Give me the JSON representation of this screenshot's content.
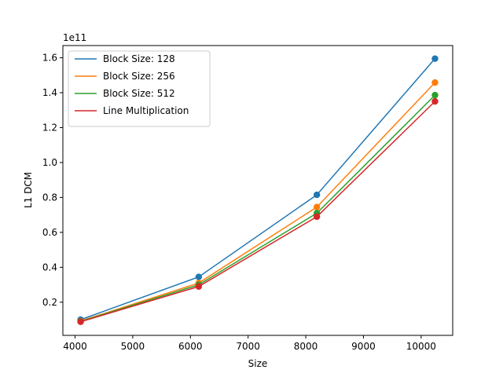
{
  "chart_data": {
    "type": "line",
    "title": "",
    "xlabel": "Size",
    "ylabel": "L1 DCM",
    "y_offset_text": "1e11",
    "x": [
      4096,
      6144,
      8192,
      10240
    ],
    "xlim": [
      3788.8,
      10547.2
    ],
    "ylim": [
      1000000000.0,
      167000000000.0
    ],
    "x_ticks": [
      4000,
      5000,
      6000,
      7000,
      8000,
      9000,
      10000
    ],
    "x_tick_labels": [
      "4000",
      "5000",
      "6000",
      "7000",
      "8000",
      "9000",
      "10000"
    ],
    "y_ticks": [
      20000000000.0,
      40000000000.0,
      60000000000.0,
      80000000000.0,
      100000000000.0,
      120000000000.0,
      140000000000.0,
      160000000000.0
    ],
    "y_tick_labels": [
      "0.2",
      "0.4",
      "0.6",
      "0.8",
      "1.0",
      "1.2",
      "1.4",
      "1.6"
    ],
    "grid": false,
    "legend_position": "top-left",
    "markers": "circle",
    "series": [
      {
        "name": "Block Size: 128",
        "color": "#1f77b4",
        "values": [
          10000000000.0,
          34500000000.0,
          81500000000.0,
          159500000000.0
        ]
      },
      {
        "name": "Block Size: 256",
        "color": "#ff7f0e",
        "values": [
          9200000000.0,
          31000000000.0,
          74500000000.0,
          145800000000.0
        ]
      },
      {
        "name": "Block Size: 512",
        "color": "#2ca02c",
        "values": [
          9000000000.0,
          30000000000.0,
          71000000000.0,
          138600000000.0
        ]
      },
      {
        "name": "Line Multiplication",
        "color": "#d62728",
        "values": [
          8800000000.0,
          29000000000.0,
          69000000000.0,
          135000000000.0
        ]
      }
    ]
  }
}
